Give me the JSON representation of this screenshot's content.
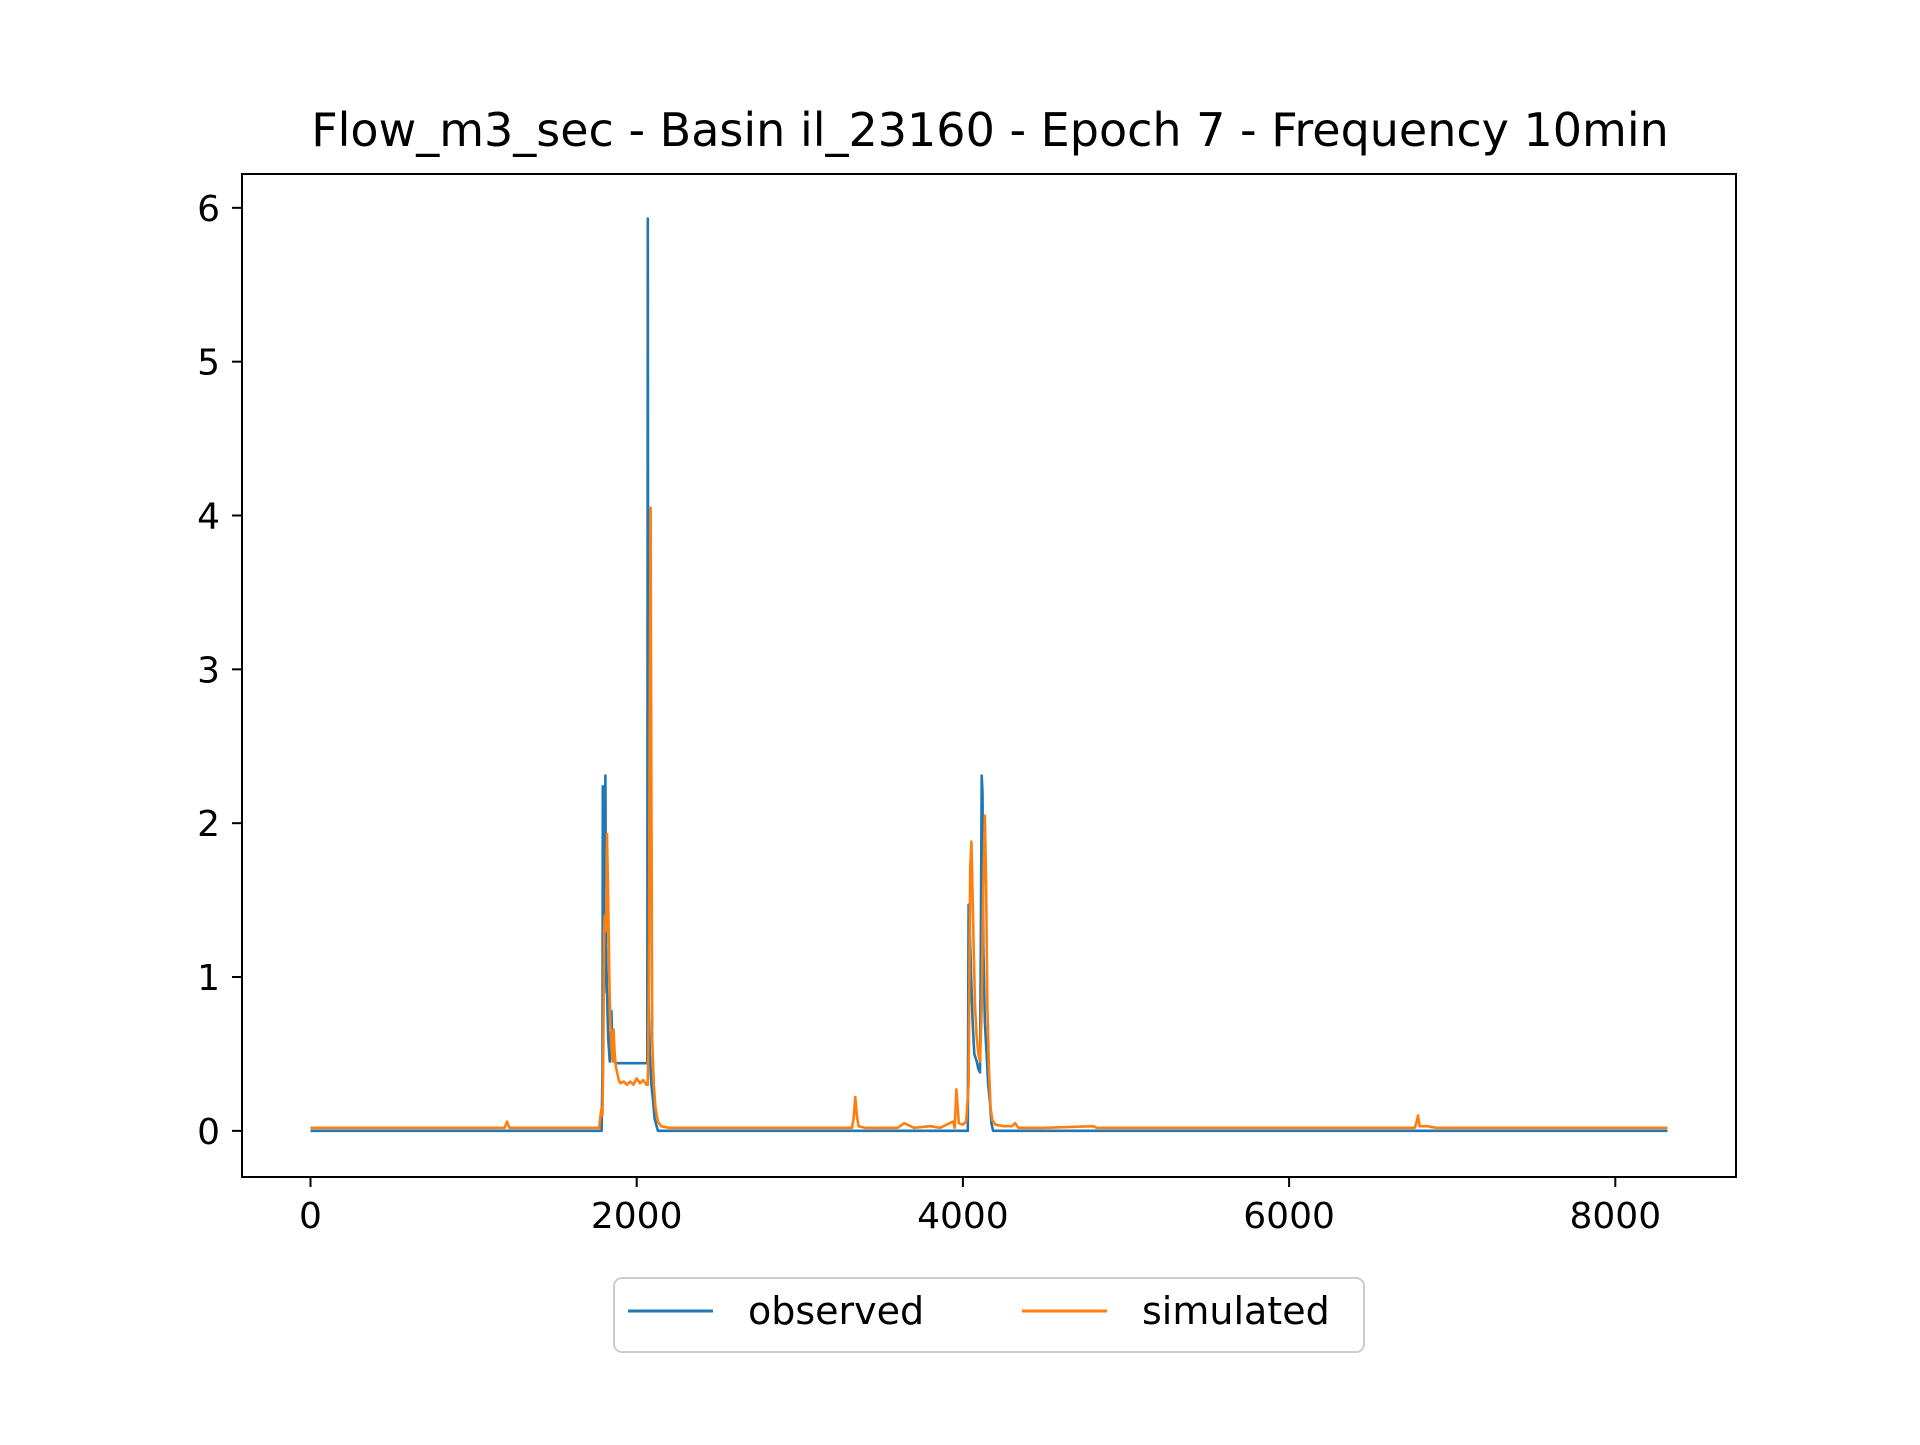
{
  "chart_data": {
    "type": "line",
    "title": "Flow_m3_sec - Basin il_23160 - Epoch 7 - Frequency 10min",
    "xlabel": "",
    "ylabel": "",
    "xlim": [
      -420,
      8740
    ],
    "ylim": [
      -0.3,
      6.22
    ],
    "x_ticks": [
      0,
      2000,
      4000,
      6000,
      8000
    ],
    "y_ticks": [
      0,
      1,
      2,
      3,
      4,
      5,
      6
    ],
    "grid": false,
    "legend_placement": "bottom-center",
    "colors": {
      "observed": "#1f77b4",
      "simulated": "#ff7f0e"
    },
    "series": [
      {
        "name": "observed",
        "points": [
          [
            0,
            0.0
          ],
          [
            1785,
            0.0
          ],
          [
            1790,
            0.4
          ],
          [
            1792,
            2.24
          ],
          [
            1795,
            1.1
          ],
          [
            1800,
            0.9
          ],
          [
            1805,
            1.6
          ],
          [
            1808,
            2.31
          ],
          [
            1812,
            1.2
          ],
          [
            1818,
            0.9
          ],
          [
            1825,
            0.6
          ],
          [
            1835,
            0.45
          ],
          [
            1845,
            0.78
          ],
          [
            1852,
            0.5
          ],
          [
            1860,
            0.47
          ],
          [
            1870,
            0.44
          ],
          [
            1900,
            0.44
          ],
          [
            2000,
            0.44
          ],
          [
            2060,
            0.44
          ],
          [
            2065,
            0.44
          ],
          [
            2068,
            5.93
          ],
          [
            2072,
            0.9
          ],
          [
            2080,
            0.5
          ],
          [
            2090,
            0.3
          ],
          [
            2100,
            0.2
          ],
          [
            2110,
            0.08
          ],
          [
            2130,
            0.0
          ],
          [
            4030,
            0.0
          ],
          [
            4035,
            1.47
          ],
          [
            4040,
            1.4
          ],
          [
            4050,
            1.0
          ],
          [
            4060,
            0.7
          ],
          [
            4070,
            0.5
          ],
          [
            4085,
            0.45
          ],
          [
            4095,
            0.4
          ],
          [
            4105,
            0.38
          ],
          [
            4110,
            1.2
          ],
          [
            4115,
            2.31
          ],
          [
            4120,
            2.2
          ],
          [
            4125,
            1.2
          ],
          [
            4135,
            0.7
          ],
          [
            4145,
            0.5
          ],
          [
            4155,
            0.3
          ],
          [
            4165,
            0.2
          ],
          [
            4175,
            0.05
          ],
          [
            4185,
            0.0
          ],
          [
            8320,
            0.0
          ]
        ]
      },
      {
        "name": "simulated",
        "points": [
          [
            0,
            0.02
          ],
          [
            500,
            0.02
          ],
          [
            1000,
            0.02
          ],
          [
            1190,
            0.02
          ],
          [
            1205,
            0.06
          ],
          [
            1220,
            0.02
          ],
          [
            1500,
            0.02
          ],
          [
            1770,
            0.02
          ],
          [
            1778,
            0.1
          ],
          [
            1785,
            0.15
          ],
          [
            1790,
            0.1
          ],
          [
            1795,
            0.5
          ],
          [
            1800,
            1.3
          ],
          [
            1805,
            1.4
          ],
          [
            1812,
            1.3
          ],
          [
            1818,
            1.93
          ],
          [
            1825,
            1.5
          ],
          [
            1832,
            1.0
          ],
          [
            1838,
            0.7
          ],
          [
            1845,
            0.55
          ],
          [
            1852,
            0.45
          ],
          [
            1858,
            0.66
          ],
          [
            1865,
            0.5
          ],
          [
            1872,
            0.42
          ],
          [
            1880,
            0.38
          ],
          [
            1890,
            0.33
          ],
          [
            1900,
            0.31
          ],
          [
            1920,
            0.32
          ],
          [
            1940,
            0.3
          ],
          [
            1960,
            0.32
          ],
          [
            1980,
            0.3
          ],
          [
            2000,
            0.34
          ],
          [
            2020,
            0.31
          ],
          [
            2040,
            0.33
          ],
          [
            2060,
            0.3
          ],
          [
            2068,
            0.3
          ],
          [
            2075,
            1.0
          ],
          [
            2080,
            2.8
          ],
          [
            2085,
            4.05
          ],
          [
            2090,
            2.2
          ],
          [
            2095,
            0.6
          ],
          [
            2100,
            0.45
          ],
          [
            2105,
            0.3
          ],
          [
            2115,
            0.15
          ],
          [
            2130,
            0.06
          ],
          [
            2150,
            0.03
          ],
          [
            2200,
            0.02
          ],
          [
            2500,
            0.02
          ],
          [
            3000,
            0.02
          ],
          [
            3320,
            0.02
          ],
          [
            3330,
            0.08
          ],
          [
            3340,
            0.22
          ],
          [
            3350,
            0.1
          ],
          [
            3360,
            0.03
          ],
          [
            3400,
            0.02
          ],
          [
            3600,
            0.02
          ],
          [
            3640,
            0.05
          ],
          [
            3660,
            0.04
          ],
          [
            3700,
            0.02
          ],
          [
            3800,
            0.03
          ],
          [
            3860,
            0.02
          ],
          [
            3900,
            0.04
          ],
          [
            3940,
            0.06
          ],
          [
            3950,
            0.02
          ],
          [
            3960,
            0.27
          ],
          [
            3975,
            0.05
          ],
          [
            4000,
            0.04
          ],
          [
            4020,
            0.06
          ],
          [
            4035,
            0.3
          ],
          [
            4045,
            1.7
          ],
          [
            4052,
            1.88
          ],
          [
            4060,
            1.5
          ],
          [
            4068,
            1.1
          ],
          [
            4075,
            0.8
          ],
          [
            4085,
            0.6
          ],
          [
            4095,
            0.5
          ],
          [
            4105,
            0.45
          ],
          [
            4115,
            0.8
          ],
          [
            4125,
            1.6
          ],
          [
            4135,
            2.05
          ],
          [
            4142,
            1.6
          ],
          [
            4150,
            0.8
          ],
          [
            4160,
            0.4
          ],
          [
            4170,
            0.15
          ],
          [
            4180,
            0.07
          ],
          [
            4200,
            0.04
          ],
          [
            4250,
            0.03
          ],
          [
            4300,
            0.03
          ],
          [
            4320,
            0.05
          ],
          [
            4340,
            0.02
          ],
          [
            4500,
            0.02
          ],
          [
            4800,
            0.03
          ],
          [
            4820,
            0.02
          ],
          [
            5500,
            0.02
          ],
          [
            6500,
            0.02
          ],
          [
            6770,
            0.02
          ],
          [
            6780,
            0.05
          ],
          [
            6790,
            0.1
          ],
          [
            6800,
            0.03
          ],
          [
            6850,
            0.03
          ],
          [
            6900,
            0.02
          ],
          [
            8320,
            0.02
          ]
        ]
      }
    ]
  }
}
